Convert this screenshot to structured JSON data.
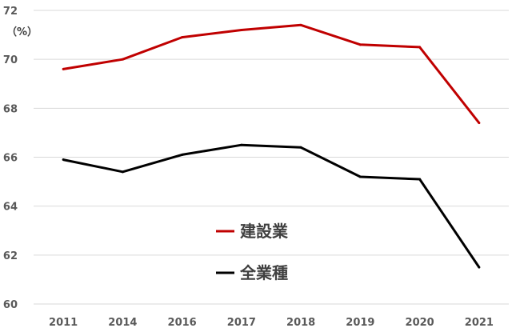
{
  "chart_data": {
    "type": "line",
    "unit_label": "（%）",
    "categories": [
      "2011",
      "2014",
      "2016",
      "2017",
      "2018",
      "2019",
      "2020",
      "2021"
    ],
    "ylim": [
      60,
      72
    ],
    "yticks": [
      "60",
      "62",
      "64",
      "66",
      "68",
      "70",
      "72"
    ],
    "grid": true,
    "legend_position": "center-bottom",
    "series": [
      {
        "name": "建設業",
        "color": "#c00000",
        "values": [
          69.6,
          70.0,
          70.9,
          71.2,
          71.4,
          70.6,
          70.5,
          67.4
        ]
      },
      {
        "name": "全業種",
        "color": "#000000",
        "values": [
          65.9,
          65.4,
          66.1,
          66.5,
          66.4,
          65.2,
          65.1,
          61.5
        ]
      }
    ]
  }
}
